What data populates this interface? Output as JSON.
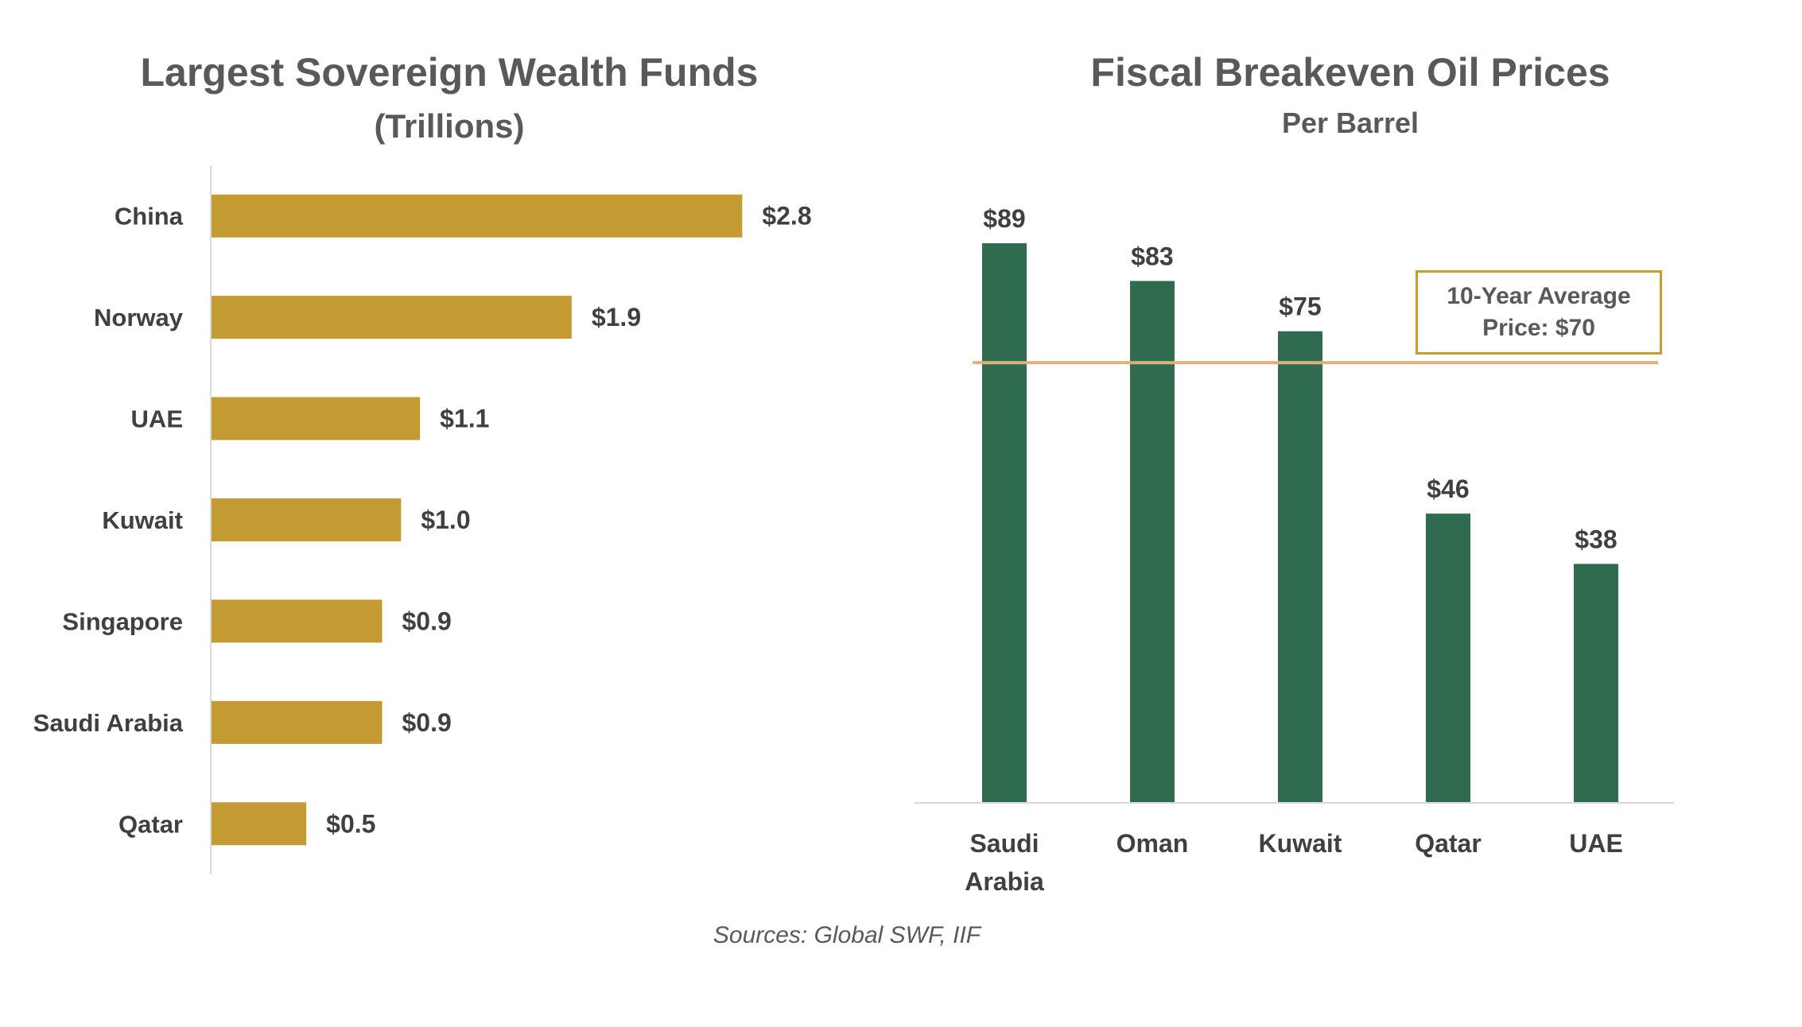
{
  "colors": {
    "left_bar": "#C49A33",
    "right_bar": "#2E6B4F",
    "average_line": "#E0B07A",
    "average_box_border": "#C89B2D",
    "axis": "#D9D9D9",
    "text": "#404040"
  },
  "chart_data": [
    {
      "type": "bar",
      "orientation": "horizontal",
      "title": "Largest Sovereign Wealth Funds",
      "subtitle": "(Trillions)",
      "categories": [
        "China",
        "Norway",
        "UAE",
        "Kuwait",
        "Singapore",
        "Saudi Arabia",
        "Qatar"
      ],
      "values": [
        2.8,
        1.9,
        1.1,
        1.0,
        0.9,
        0.9,
        0.5
      ],
      "data_labels": [
        "$2.8",
        "$1.9",
        "$1.1",
        "$1.0",
        "$0.9",
        "$0.9",
        "$0.5"
      ],
      "xlim": [
        0,
        3
      ],
      "grid": false
    },
    {
      "type": "bar",
      "orientation": "vertical",
      "title": "Fiscal Breakeven Oil Prices",
      "subtitle": "Per Barrel",
      "categories": [
        [
          "Saudi",
          "Arabia"
        ],
        [
          "Oman"
        ],
        [
          "Kuwait"
        ],
        [
          "Qatar"
        ],
        [
          "UAE"
        ]
      ],
      "values": [
        89,
        83,
        75,
        46,
        38
      ],
      "data_labels": [
        "$89",
        "$83",
        "$75",
        "$46",
        "$38"
      ],
      "ylim": [
        0,
        100
      ],
      "reference_line": {
        "value": 70,
        "label_lines": [
          "10-Year Average",
          "Price: $70"
        ]
      },
      "grid": false
    }
  ],
  "sources": "Sources: Global SWF, IIF"
}
